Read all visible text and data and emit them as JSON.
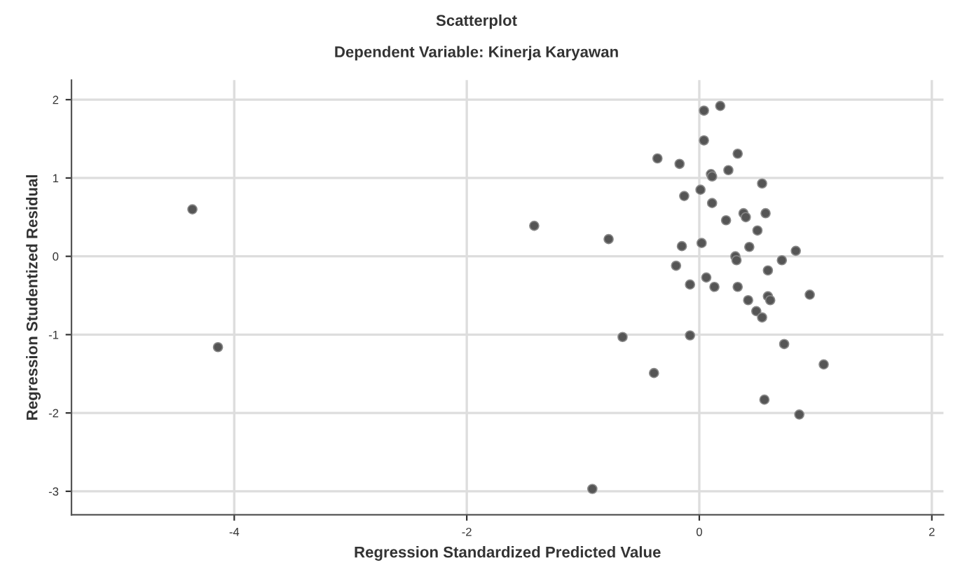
{
  "chart_data": {
    "type": "scatter",
    "title": "Scatterplot",
    "subtitle": "Dependent Variable: Kinerja Karyawan",
    "xlabel": "Regression Standardized Predicted Value",
    "ylabel": "Regression Studentized Residual",
    "x": [
      -4.36,
      -4.14,
      -1.42,
      -0.92,
      -0.78,
      -0.66,
      -0.39,
      -0.36,
      -0.2,
      -0.17,
      -0.15,
      -0.13,
      -0.08,
      -0.08,
      0.01,
      0.02,
      0.04,
      0.04,
      0.06,
      0.1,
      0.11,
      0.11,
      0.13,
      0.18,
      0.23,
      0.25,
      0.31,
      0.32,
      0.33,
      0.33,
      0.38,
      0.4,
      0.42,
      0.43,
      0.49,
      0.5,
      0.54,
      0.54,
      0.56,
      0.57,
      0.59,
      0.59,
      0.61,
      0.71,
      0.73,
      0.83,
      0.86,
      0.95,
      1.07
    ],
    "series": [
      {
        "color": "#555555",
        "values": [
          0.6,
          -1.16,
          0.39,
          -2.97,
          0.22,
          -1.03,
          -1.49,
          1.25,
          -0.12,
          1.18,
          0.13,
          0.77,
          -0.36,
          -1.01,
          0.85,
          0.17,
          1.86,
          1.48,
          -0.27,
          1.05,
          1.02,
          0.68,
          -0.39,
          1.92,
          0.46,
          1.1,
          0.0,
          -0.05,
          1.31,
          -0.39,
          0.55,
          0.5,
          -0.56,
          0.12,
          -0.7,
          0.33,
          0.93,
          -0.78,
          -1.83,
          0.55,
          -0.18,
          -0.51,
          -0.56,
          -0.05,
          -1.12,
          0.07,
          -2.02,
          -0.49,
          -1.38
        ]
      }
    ],
    "xlim": [
      -5.4,
      2.1
    ],
    "ylim": [
      -3.3,
      2.25
    ],
    "xticks": [
      -4,
      -2,
      0,
      2
    ],
    "yticks": [
      -3,
      -2,
      -1,
      0,
      1,
      2
    ],
    "grid": true,
    "marker": "circle"
  }
}
